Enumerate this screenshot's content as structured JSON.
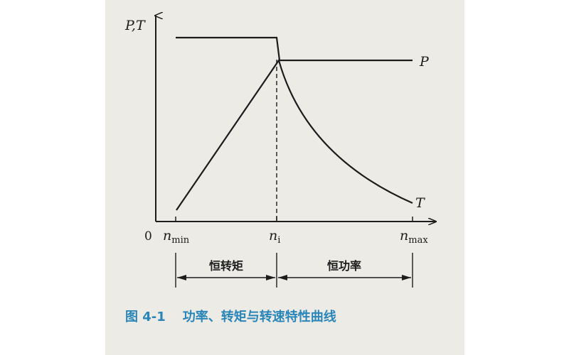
{
  "chart_data": {
    "type": "line",
    "y_axis_label": "P,T",
    "origin_label": "0",
    "x_ticks": [
      {
        "base": "n",
        "sub": "min"
      },
      {
        "base": "n",
        "sub": "i"
      },
      {
        "base": "n",
        "sub": "max"
      }
    ],
    "series": [
      {
        "name": "P",
        "x": [
          "n_min",
          "n_i",
          "n_max"
        ],
        "y_relative": [
          1.15,
          1.15,
          1.0
        ],
        "note_shape": "constant then drop at n_i to constant"
      },
      {
        "name": "T",
        "x": [
          "n_min",
          "n_i",
          "n_max"
        ],
        "y_relative": [
          0.0,
          1.0,
          0.0
        ],
        "note_shape": "linear rise to n_i then hyperbolic decay"
      }
    ],
    "regions": [
      {
        "label": "恒转矩",
        "from": "n_min",
        "to": "n_i"
      },
      {
        "label": "恒功率",
        "from": "n_i",
        "to": "n_max"
      }
    ]
  },
  "caption": {
    "figure_no": "图 4-1",
    "title": "功率、转矩与转速特性曲线"
  },
  "colors": {
    "line": "#1c1c1c",
    "caption": "#2a86b8",
    "paper": "#ecebe6"
  }
}
